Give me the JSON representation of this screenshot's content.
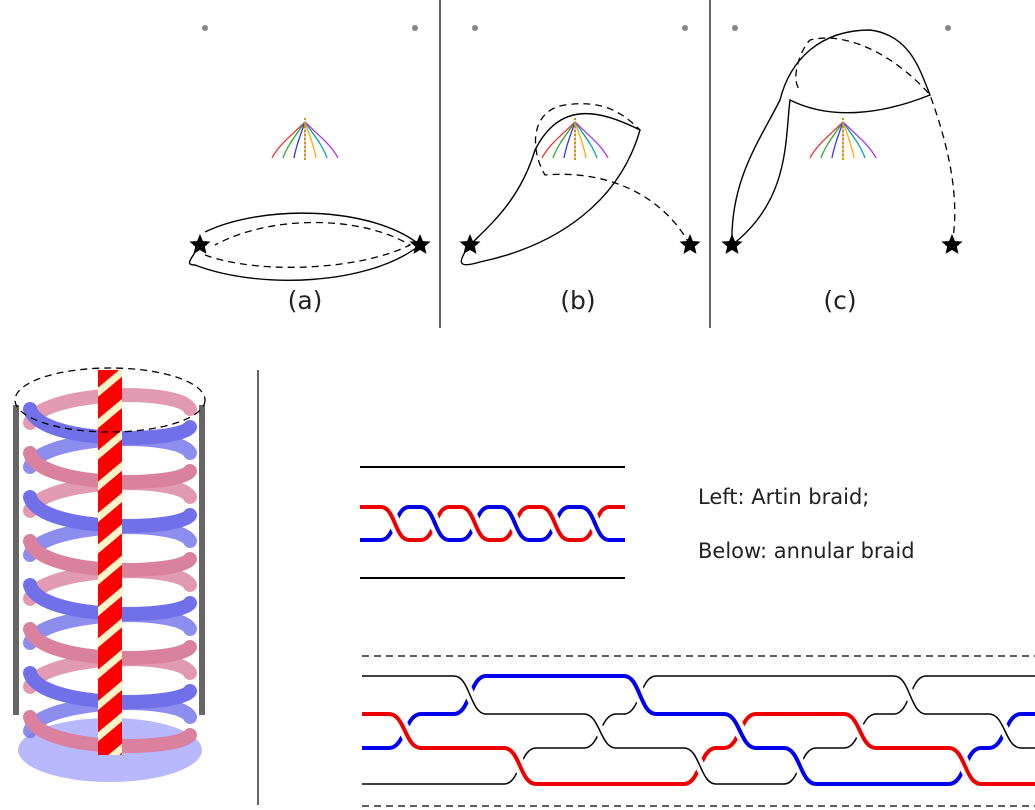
{
  "panels": [
    {
      "label": "(a)"
    },
    {
      "label": "(b)"
    },
    {
      "label": "(c)"
    }
  ],
  "braid_text": {
    "line1": "Left: Artin braid;",
    "line2": "Below: annular braid"
  }
}
